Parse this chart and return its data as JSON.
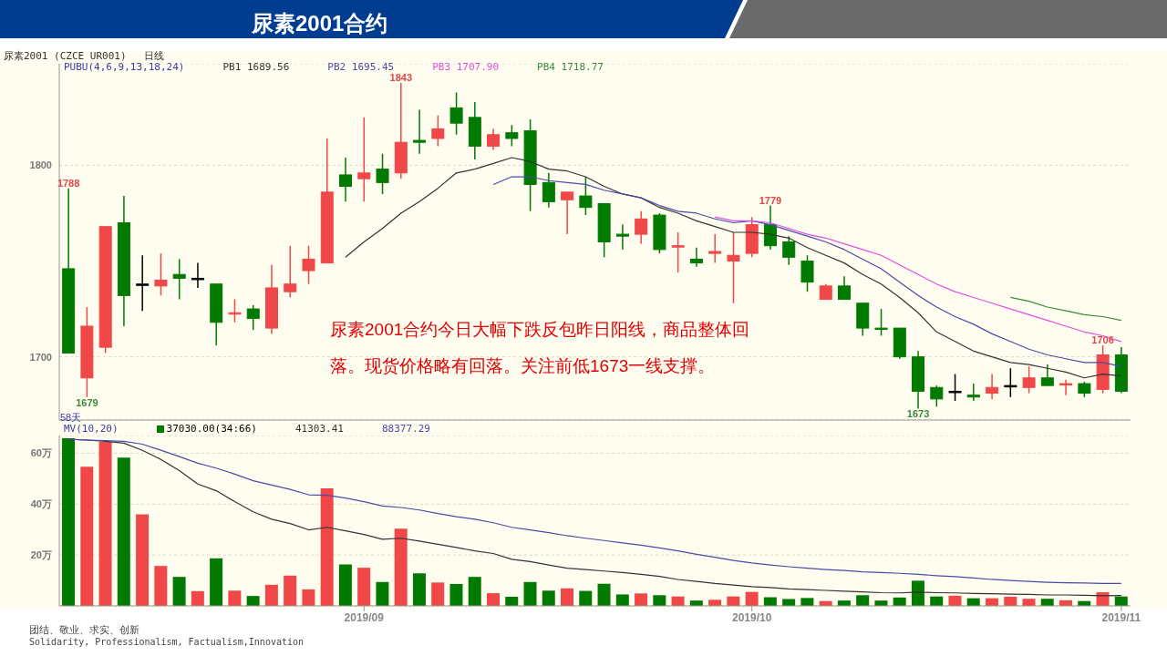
{
  "chart_data": [
    {
      "type": "candlestick",
      "title": "尿素2001合约",
      "subtitle": "尿素2001 (CZCE UR001)   日线",
      "legend_title": "PUBU(4,6,9,13,18,24)",
      "legend": "top left",
      "grid": "y",
      "tick_labels": "y",
      "marker": "none",
      "categories": [
        null,
        null,
        null,
        null,
        null,
        null,
        null,
        null,
        null,
        null,
        null,
        null,
        null,
        null,
        null,
        null,
        "2019/09",
        null,
        null,
        null,
        null,
        null,
        null,
        null,
        null,
        null,
        null,
        null,
        null,
        null,
        null,
        null,
        null,
        null,
        null,
        null,
        null,
        "2019/10",
        null,
        null,
        null,
        null,
        null,
        null,
        null,
        null,
        null,
        null,
        null,
        null,
        null,
        null,
        null,
        null,
        null,
        null,
        null,
        "2019/11"
      ],
      "ylim": [
        1667,
        1853
      ],
      "yticks": [
        1700,
        1800
      ],
      "ohlc": [
        [
          1746,
          1788,
          1702,
          1702
        ],
        [
          1689,
          1726,
          1679,
          1716
        ],
        [
          1705,
          1768,
          1702,
          1768
        ],
        [
          1770,
          1784,
          1716,
          1732
        ],
        [
          1738,
          1753,
          1724,
          1738
        ],
        [
          1737,
          1754,
          1732,
          1740
        ],
        [
          1743,
          1751,
          1730,
          1741
        ],
        [
          1741,
          1749,
          1736,
          1741
        ],
        [
          1738,
          1738,
          1706,
          1718
        ],
        [
          1723,
          1730,
          1718,
          1723
        ],
        [
          1725,
          1727,
          1714,
          1720
        ],
        [
          1715,
          1748,
          1712,
          1736
        ],
        [
          1734,
          1758,
          1731,
          1738
        ],
        [
          1745,
          1758,
          1738,
          1751
        ],
        [
          1749,
          1814,
          1749,
          1786
        ],
        [
          1795,
          1804,
          1781,
          1789
        ],
        [
          1793,
          1825,
          1781,
          1796
        ],
        [
          1798,
          1806,
          1785,
          1791
        ],
        [
          1796,
          1843,
          1793,
          1812
        ],
        [
          1813,
          1829,
          1806,
          1812
        ],
        [
          1814,
          1826,
          1810,
          1819
        ],
        [
          1830,
          1838,
          1816,
          1822
        ],
        [
          1825,
          1833,
          1803,
          1810
        ],
        [
          1810,
          1819,
          1808,
          1816
        ],
        [
          1817,
          1821,
          1810,
          1814
        ],
        [
          1818,
          1824,
          1776,
          1790
        ],
        [
          1791,
          1796,
          1778,
          1781
        ],
        [
          1782,
          1786,
          1764,
          1786
        ],
        [
          1784,
          1794,
          1774,
          1778
        ],
        [
          1780,
          1780,
          1752,
          1760
        ],
        [
          1764,
          1769,
          1756,
          1763
        ],
        [
          1764,
          1776,
          1759,
          1772
        ],
        [
          1774,
          1775,
          1754,
          1756
        ],
        [
          1758,
          1765,
          1744,
          1758
        ],
        [
          1751,
          1757,
          1747,
          1749
        ],
        [
          1754,
          1764,
          1749,
          1755
        ],
        [
          1750,
          1765,
          1728,
          1753
        ],
        [
          1754,
          1773,
          1752,
          1769
        ],
        [
          1769,
          1779,
          1756,
          1758
        ],
        [
          1760,
          1763,
          1748,
          1752
        ],
        [
          1750,
          1753,
          1734,
          1739
        ],
        [
          1730,
          1738,
          1730,
          1737
        ],
        [
          1737,
          1742,
          1730,
          1730
        ],
        [
          1728,
          1728,
          1711,
          1715
        ],
        [
          1715,
          1725,
          1711,
          1715
        ],
        [
          1715,
          1715,
          1699,
          1700
        ],
        [
          1700,
          1703,
          1673,
          1682
        ],
        [
          1684,
          1685,
          1674,
          1678
        ],
        [
          1682,
          1691,
          1677,
          1682
        ],
        [
          1680,
          1686,
          1677,
          1679
        ],
        [
          1681,
          1691,
          1678,
          1684
        ],
        [
          1685,
          1694,
          1679,
          1685
        ],
        [
          1684,
          1695,
          1681,
          1689
        ],
        [
          1689,
          1696,
          1685,
          1685
        ],
        [
          1686,
          1688,
          1680,
          1686
        ],
        [
          1686,
          1687,
          1679,
          1681
        ],
        [
          1683,
          1706,
          1681,
          1701
        ],
        [
          1701,
          1705,
          1681,
          1682
        ]
      ],
      "colors": [
        "#007a00",
        "#f04848",
        "#f04848",
        "#007a00",
        "#000000",
        "#f04848",
        "#007a00",
        "#000000",
        "#007a00",
        "#f04848",
        "#007a00",
        "#f04848",
        "#f04848",
        "#f04848",
        "#f04848",
        "#007a00",
        "#f04848",
        "#007a00",
        "#f04848",
        "#007a00",
        "#f04848",
        "#007a00",
        "#007a00",
        "#f04848",
        "#007a00",
        "#007a00",
        "#007a00",
        "#f04848",
        "#007a00",
        "#007a00",
        "#007a00",
        "#f04848",
        "#007a00",
        "#f04848",
        "#007a00",
        "#f04848",
        "#f04848",
        "#f04848",
        "#007a00",
        "#007a00",
        "#007a00",
        "#f04848",
        "#007a00",
        "#007a00",
        "#007a00",
        "#007a00",
        "#007a00",
        "#007a00",
        "#000000",
        "#007a00",
        "#f04848",
        "#000000",
        "#f04848",
        "#007a00",
        "#f04848",
        "#007a00",
        "#f04848",
        "#007a00"
      ],
      "series": [
        {
          "name": "PB1 1689.56",
          "type": "line",
          "color": "#333333",
          "values": [
            null,
            null,
            null,
            null,
            null,
            null,
            null,
            null,
            null,
            null,
            null,
            null,
            null,
            null,
            null,
            1752,
            1760,
            1767,
            1775,
            1781,
            1788,
            1796,
            1798,
            1801,
            1804,
            1802,
            1798,
            1797,
            1794,
            1789,
            1785,
            1783,
            1778,
            1775,
            1771,
            1768,
            1765,
            1765,
            1764,
            1762,
            1757,
            1753,
            1749,
            1743,
            1738,
            1731,
            1723,
            1713,
            1708,
            1703,
            1700,
            1697,
            1696,
            1694,
            1692,
            1689,
            1691,
            1690
          ]
        },
        {
          "name": "PB2 1695.45",
          "type": "line",
          "color": "#4a4aa8",
          "values": [
            null,
            null,
            null,
            null,
            null,
            null,
            null,
            null,
            null,
            null,
            null,
            null,
            null,
            null,
            null,
            null,
            null,
            null,
            null,
            null,
            null,
            null,
            null,
            1790,
            1794,
            1794,
            1792,
            1791,
            1790,
            1787,
            1785,
            1783,
            1779,
            1776,
            1775,
            1772,
            1770,
            1771,
            1769,
            1766,
            1763,
            1760,
            1756,
            1751,
            1746,
            1739,
            1732,
            1726,
            1721,
            1717,
            1712,
            1708,
            1704,
            1701,
            1699,
            1697,
            1697,
            1695
          ]
        },
        {
          "name": "PB3 1707.90",
          "type": "line",
          "color": "#e050e0",
          "values": [
            null,
            null,
            null,
            null,
            null,
            null,
            null,
            null,
            null,
            null,
            null,
            null,
            null,
            null,
            null,
            null,
            null,
            null,
            null,
            null,
            null,
            null,
            null,
            null,
            null,
            null,
            null,
            null,
            null,
            null,
            null,
            null,
            null,
            null,
            null,
            1773,
            1771,
            1771,
            1770,
            1767,
            1764,
            1762,
            1759,
            1756,
            1753,
            1748,
            1743,
            1738,
            1734,
            1731,
            1728,
            1725,
            1722,
            1719,
            1716,
            1713,
            1711,
            1708
          ]
        },
        {
          "name": "PB4 1718.77",
          "type": "line",
          "color": "#3a8a3a",
          "values": [
            null,
            null,
            null,
            null,
            null,
            null,
            null,
            null,
            null,
            null,
            null,
            null,
            null,
            null,
            null,
            null,
            null,
            null,
            null,
            null,
            null,
            null,
            null,
            null,
            null,
            null,
            null,
            null,
            null,
            null,
            null,
            null,
            null,
            null,
            null,
            null,
            null,
            null,
            null,
            null,
            null,
            null,
            null,
            null,
            null,
            null,
            null,
            null,
            null,
            null,
            null,
            1731,
            1729,
            1726,
            1724,
            1722,
            1721,
            1719
          ]
        }
      ],
      "annotations": [
        "58天",
        "尿素2001合约今日大幅下跌反包昨日阳线，商品整体回落。现货价格略有回落。关注前低1673一线支撑。",
        {
          "text": "1788",
          "y": 1788
        },
        {
          "text": "1679",
          "y": 1679
        },
        {
          "text": "1843",
          "y": 1843
        },
        {
          "text": "1779",
          "y": 1779
        },
        {
          "text": "1673",
          "y": 1673
        },
        {
          "text": "1706",
          "y": 1706
        }
      ]
    },
    {
      "type": "bar",
      "legend_title": "MV(10,20)",
      "legend": "top left",
      "grid": "y",
      "marker": "none",
      "categories": [
        null,
        null,
        null,
        null,
        null,
        null,
        null,
        null,
        null,
        null,
        null,
        null,
        null,
        null,
        null,
        null,
        "2019/09",
        null,
        null,
        null,
        null,
        null,
        null,
        null,
        null,
        null,
        null,
        null,
        null,
        null,
        null,
        null,
        null,
        null,
        null,
        null,
        null,
        "2019/10",
        null,
        null,
        null,
        null,
        null,
        null,
        null,
        null,
        null,
        null,
        null,
        null,
        null,
        null,
        null,
        null,
        null,
        null,
        null,
        "2019/11"
      ],
      "ylim": [
        0,
        67
      ],
      "yticks": [
        {
          "value": 20,
          "label": "20万"
        },
        {
          "value": 40,
          "label": "40万"
        },
        {
          "value": 60,
          "label": "60万"
        }
      ],
      "series": [
        {
          "name": "37030.00(34:66)",
          "type": "bar",
          "values": [
            65.9,
            54.7,
            64.5,
            58.3,
            36.0,
            15.7,
            11.4,
            5.8,
            18.7,
            6.0,
            3.9,
            8.3,
            11.9,
            6.5,
            46.2,
            16.3,
            15.0,
            9.4,
            30.4,
            12.8,
            9.2,
            8.6,
            11.4,
            5.0,
            3.6,
            9.4,
            6.0,
            6.9,
            5.9,
            8.7,
            4.5,
            4.9,
            4.2,
            3.7,
            2.1,
            2.4,
            3.7,
            5.5,
            3.4,
            2.7,
            3.1,
            1.9,
            2.1,
            4.2,
            2.1,
            3.3,
            9.9,
            3.7,
            4.0,
            3.0,
            3.0,
            3.6,
            2.8,
            2.8,
            2.2,
            1.9,
            5.4,
            3.7
          ],
          "colors": [
            "#007a00",
            "#f04848",
            "#f04848",
            "#007a00",
            "#f04848",
            "#f04848",
            "#007a00",
            "#f04848",
            "#007a00",
            "#f04848",
            "#007a00",
            "#f04848",
            "#f04848",
            "#f04848",
            "#f04848",
            "#007a00",
            "#f04848",
            "#007a00",
            "#f04848",
            "#007a00",
            "#f04848",
            "#007a00",
            "#007a00",
            "#f04848",
            "#007a00",
            "#007a00",
            "#007a00",
            "#f04848",
            "#007a00",
            "#007a00",
            "#007a00",
            "#f04848",
            "#007a00",
            "#f04848",
            "#007a00",
            "#f04848",
            "#f04848",
            "#f04848",
            "#007a00",
            "#007a00",
            "#007a00",
            "#f04848",
            "#007a00",
            "#007a00",
            "#007a00",
            "#007a00",
            "#007a00",
            "#007a00",
            "#f04848",
            "#007a00",
            "#f04848",
            "#f04848",
            "#f04848",
            "#007a00",
            "#f04848",
            "#007a00",
            "#f04848",
            "#007a00"
          ]
        },
        {
          "name": "41303.41",
          "type": "line",
          "color": "#333333",
          "values": [
            65.5,
            65.2,
            64.7,
            64.0,
            61.2,
            57.6,
            53.2,
            47.9,
            45.3,
            41.0,
            37.0,
            34.1,
            32.4,
            29.9,
            30.9,
            29.5,
            28.1,
            26.2,
            26.6,
            25.5,
            24.2,
            23.0,
            21.6,
            20.6,
            18.3,
            17.4,
            16.1,
            14.8,
            14.3,
            13.7,
            13.1,
            12.4,
            11.6,
            10.4,
            9.6,
            8.8,
            8.2,
            7.6,
            7.2,
            6.7,
            6.4,
            6.1,
            5.8,
            5.5,
            5.2,
            5.1,
            5.4,
            5.2,
            5.1,
            4.9,
            4.8,
            4.6,
            4.5,
            4.3,
            4.3,
            4.2,
            4.0,
            4.1
          ]
        },
        {
          "name": "88377.29",
          "type": "line",
          "color": "#4a4aa8",
          "values": [
            65.5,
            65.2,
            65.0,
            64.7,
            63.6,
            61.2,
            58.7,
            56.1,
            54.2,
            51.8,
            49.2,
            47.5,
            45.8,
            43.7,
            43.5,
            42.4,
            41.0,
            39.3,
            38.7,
            37.7,
            36.3,
            35.1,
            34.1,
            32.7,
            30.9,
            29.9,
            28.8,
            27.6,
            26.6,
            25.7,
            24.8,
            23.9,
            22.8,
            21.6,
            20.3,
            19.1,
            17.9,
            16.9,
            16.1,
            15.4,
            14.8,
            14.3,
            13.9,
            13.4,
            13.1,
            12.8,
            12.4,
            11.9,
            11.5,
            11.0,
            10.4,
            10.0,
            9.6,
            9.3,
            9.1,
            9.0,
            8.8,
            8.8
          ]
        }
      ],
      "annotations": [
        "团结、敬业、求实、创新",
        "Solidarity, Professionalism, Factualism,Innovation"
      ]
    }
  ]
}
